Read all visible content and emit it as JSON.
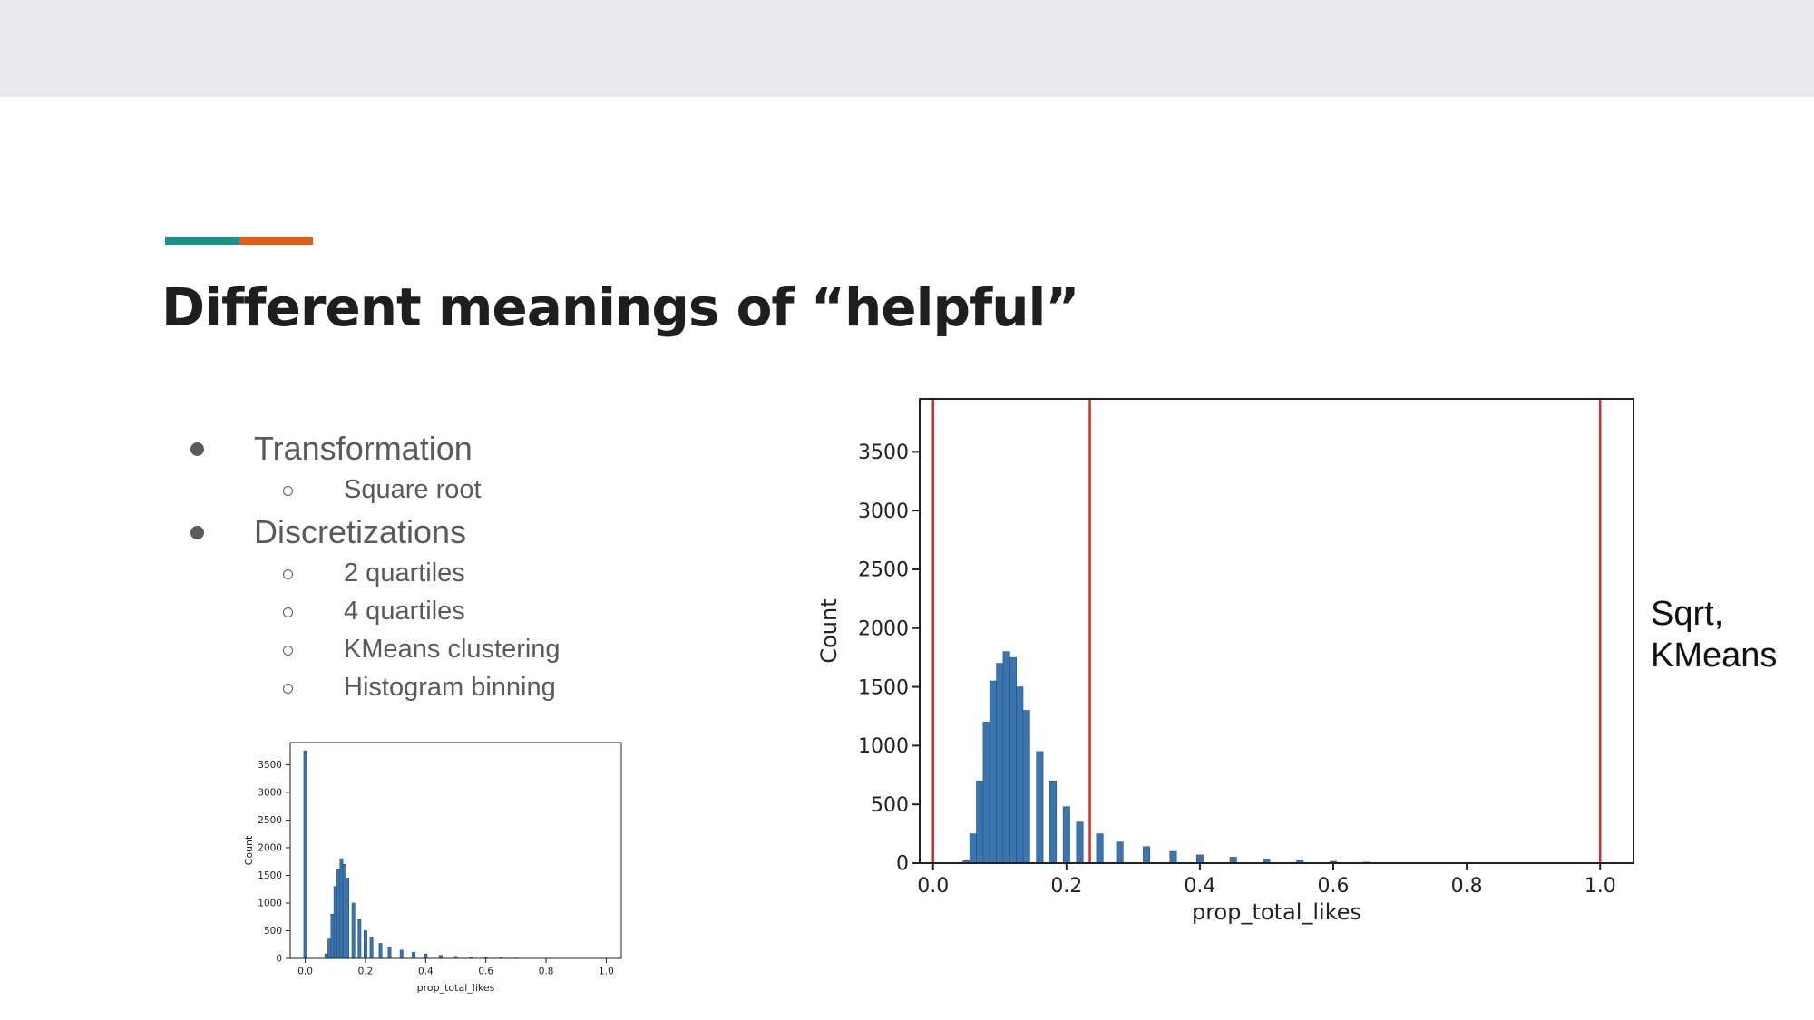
{
  "slide": {
    "title": "Different meanings of “helpful”",
    "accent_colors": [
      "#18958a",
      "#e35d12"
    ],
    "bullets": [
      {
        "text": "Transformation",
        "level": 1
      },
      {
        "text": "Square root",
        "level": 2
      },
      {
        "text": "Discretizations",
        "level": 1
      },
      {
        "text": "2 quartiles",
        "level": 2
      },
      {
        "text": "4 quartiles",
        "level": 2
      },
      {
        "text": "KMeans clustering",
        "level": 2
      },
      {
        "text": "Histogram binning",
        "level": 2
      }
    ],
    "side_note": [
      "Sqrt,",
      "KMeans"
    ]
  },
  "chart_data": [
    {
      "type": "bar",
      "subtype": "histogram",
      "title": "",
      "xlabel": "prop_total_likes",
      "ylabel": "Count",
      "xlim": [
        -0.05,
        1.05
      ],
      "ylim": [
        0,
        3900
      ],
      "xticks": [
        0.0,
        0.2,
        0.4,
        0.6,
        0.8,
        1.0
      ],
      "yticks": [
        0,
        500,
        1000,
        1500,
        2000,
        2500,
        3000,
        3500
      ],
      "bar_color": "#3b75af",
      "x": [
        0.0,
        0.07,
        0.08,
        0.09,
        0.1,
        0.11,
        0.12,
        0.13,
        0.14,
        0.16,
        0.18,
        0.2,
        0.22,
        0.25,
        0.28,
        0.32,
        0.36,
        0.4,
        0.45,
        0.5,
        0.55,
        0.6,
        0.65,
        0.7,
        0.8,
        0.9,
        1.0
      ],
      "values": [
        3750,
        80,
        350,
        800,
        1300,
        1600,
        1800,
        1700,
        1450,
        1000,
        700,
        500,
        380,
        270,
        200,
        150,
        110,
        80,
        55,
        35,
        25,
        15,
        10,
        6,
        4,
        3,
        2
      ]
    },
    {
      "type": "bar",
      "subtype": "histogram",
      "title": "",
      "xlabel": "prop_total_likes",
      "ylabel": "Count",
      "xlim": [
        -0.02,
        1.05
      ],
      "ylim": [
        0,
        3950
      ],
      "xticks": [
        0.0,
        0.2,
        0.4,
        0.6,
        0.8,
        1.0
      ],
      "yticks": [
        0,
        500,
        1000,
        1500,
        2000,
        2500,
        3000,
        3500
      ],
      "bar_color": "#3b75af",
      "threshold_lines": [
        0.0,
        0.235,
        1.0
      ],
      "threshold_color": "#d42a2a",
      "x": [
        0.05,
        0.06,
        0.07,
        0.08,
        0.09,
        0.1,
        0.11,
        0.12,
        0.13,
        0.14,
        0.16,
        0.18,
        0.2,
        0.22,
        0.25,
        0.28,
        0.32,
        0.36,
        0.4,
        0.45,
        0.5,
        0.55,
        0.6,
        0.65,
        0.7
      ],
      "values": [
        20,
        250,
        700,
        1200,
        1550,
        1700,
        1800,
        1750,
        1500,
        1300,
        950,
        700,
        480,
        350,
        250,
        180,
        140,
        100,
        70,
        50,
        35,
        25,
        15,
        8,
        4
      ]
    }
  ]
}
